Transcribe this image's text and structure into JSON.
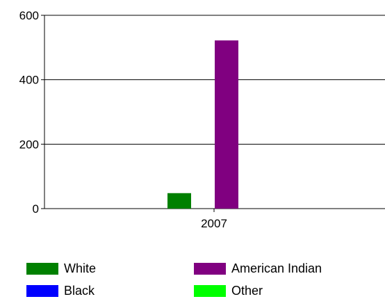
{
  "chart_data": {
    "type": "bar",
    "categories": [
      "2007"
    ],
    "series": [
      {
        "name": "White",
        "values": [
          48
        ],
        "color": "#008000"
      },
      {
        "name": "Black",
        "values": [
          0
        ],
        "color": "#0000ff"
      },
      {
        "name": "American Indian",
        "values": [
          522
        ],
        "color": "#800080"
      },
      {
        "name": "Other",
        "values": [
          0
        ],
        "color": "#00ff00"
      }
    ],
    "y_ticks": [
      "0",
      "200",
      "400",
      "600"
    ],
    "ylim": [
      0,
      600
    ],
    "grid": true,
    "legend_position": "bottom"
  }
}
